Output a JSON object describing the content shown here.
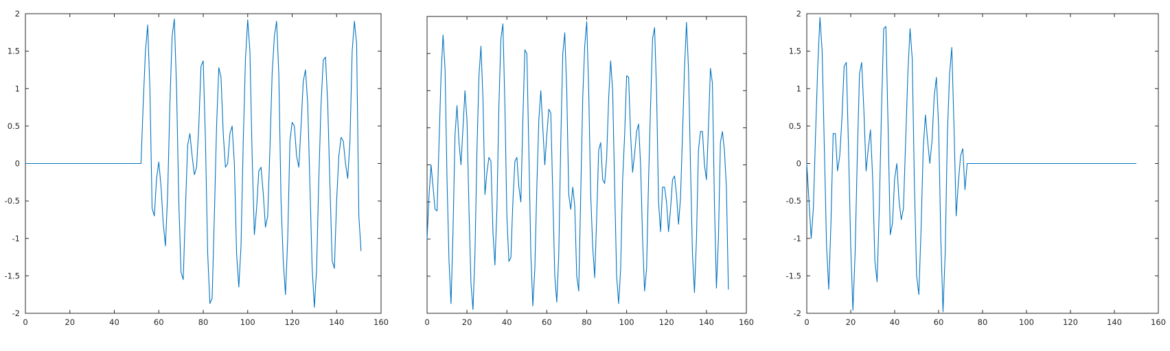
{
  "chart_data": [
    {
      "type": "line",
      "xlim": [
        0,
        160
      ],
      "ylim": [
        -2,
        2
      ],
      "xticks": [
        0,
        20,
        40,
        60,
        80,
        100,
        120,
        140,
        160
      ],
      "yticks": [
        -2,
        -1.5,
        -1,
        -0.5,
        0,
        0.5,
        1,
        1.5,
        2
      ],
      "xtick_labels": [
        "0",
        "20",
        "40",
        "60",
        "80",
        "100",
        "120",
        "140",
        "160"
      ],
      "ytick_labels": [
        "-2",
        "-1.5",
        "-1",
        "-0.5",
        "0",
        "0.5",
        "1",
        "1.5",
        "2"
      ],
      "grid": false,
      "series": [
        {
          "color": "#0072bd",
          "x": [
            0,
            52,
            53,
            54,
            55,
            56,
            57,
            58,
            59,
            60,
            61,
            62,
            63,
            64,
            65,
            66,
            67,
            68,
            69,
            70,
            71,
            72,
            73,
            74,
            75,
            76,
            77,
            78,
            79,
            80,
            81,
            82,
            83,
            84,
            85,
            86,
            87,
            88,
            89,
            90,
            91,
            92,
            93,
            94,
            95,
            96,
            97,
            98,
            99,
            100,
            101,
            102,
            103,
            104,
            105,
            106,
            107,
            108,
            109,
            110,
            111,
            112,
            113,
            114,
            115,
            116,
            117,
            118,
            119,
            120,
            121,
            122,
            123,
            124,
            125,
            126,
            127,
            128,
            129,
            130,
            131,
            132,
            133,
            134,
            135,
            136,
            137,
            138,
            139,
            140,
            141,
            142,
            143,
            144,
            145,
            146,
            147,
            148,
            149,
            150,
            151
          ],
          "y": [
            0,
            0,
            0.8,
            1.5,
            1.85,
            1.0,
            -0.6,
            -0.7,
            -0.2,
            0.02,
            -0.3,
            -0.8,
            -1.1,
            -0.4,
            0.8,
            1.7,
            1.93,
            1.0,
            -0.5,
            -1.45,
            -1.55,
            -0.6,
            0.25,
            0.4,
            0.1,
            -0.15,
            -0.05,
            0.5,
            1.3,
            1.37,
            0.3,
            -1.2,
            -1.87,
            -1.8,
            -0.7,
            0.5,
            1.28,
            1.15,
            0.4,
            -0.05,
            0.0,
            0.4,
            0.5,
            0.0,
            -1.2,
            -1.65,
            -1.1,
            0.3,
            1.4,
            1.92,
            1.5,
            0.1,
            -0.95,
            -0.6,
            -0.1,
            -0.05,
            -0.4,
            -0.85,
            -0.7,
            0.2,
            1.2,
            1.7,
            1.9,
            1.2,
            -0.5,
            -1.3,
            -1.75,
            -1.0,
            0.3,
            0.55,
            0.5,
            0.1,
            -0.05,
            0.5,
            1.1,
            1.25,
            0.8,
            -0.3,
            -1.4,
            -1.92,
            -1.4,
            -0.2,
            0.8,
            1.38,
            1.42,
            0.8,
            -0.3,
            -1.3,
            -1.4,
            -0.5,
            0.1,
            0.35,
            0.3,
            0.0,
            -0.2,
            0.3,
            1.5,
            1.9,
            1.6,
            -0.7,
            -1.17
          ]
        }
      ]
    },
    {
      "type": "line",
      "xlim": [
        0,
        160
      ],
      "ylim": [
        -2,
        2
      ],
      "xticks": [
        0,
        20,
        40,
        60,
        80,
        100,
        120,
        140,
        160
      ],
      "yticks": [
        -2,
        -1.5,
        -1,
        -0.5,
        0,
        0.5,
        1,
        1.5,
        2
      ],
      "xtick_labels": [
        "0",
        "20",
        "40",
        "60",
        "80",
        "100",
        "120",
        "140",
        "160"
      ],
      "ytick_labels": [],
      "grid": false,
      "series": [
        {
          "color": "#0072bd",
          "x": [
            0,
            1,
            2,
            3,
            4,
            5,
            6,
            7,
            8,
            9,
            10,
            11,
            12,
            13,
            14,
            15,
            16,
            17,
            18,
            19,
            20,
            21,
            22,
            23,
            24,
            25,
            26,
            27,
            28,
            29,
            30,
            31,
            32,
            33,
            34,
            35,
            36,
            37,
            38,
            39,
            40,
            41,
            42,
            43,
            44,
            45,
            46,
            47,
            48,
            49,
            50,
            51,
            52,
            53,
            54,
            55,
            56,
            57,
            58,
            59,
            60,
            61,
            62,
            63,
            64,
            65,
            66,
            67,
            68,
            69,
            70,
            71,
            72,
            73,
            74,
            75,
            76,
            77,
            78,
            79,
            80,
            81,
            82,
            83,
            84,
            85,
            86,
            87,
            88,
            89,
            90,
            91,
            92,
            93,
            94,
            95,
            96,
            97,
            98,
            99,
            100,
            101,
            102,
            103,
            104,
            105,
            106,
            107,
            108,
            109,
            110,
            111,
            112,
            113,
            114,
            115,
            116,
            117,
            118,
            119,
            120,
            121,
            122,
            123,
            124,
            125,
            126,
            127,
            128,
            129,
            130,
            131,
            132,
            133,
            134,
            135,
            136,
            137,
            138,
            139,
            140,
            141,
            142,
            143,
            144,
            145,
            146,
            147,
            148,
            149,
            150,
            151
          ],
          "y": [
            -1.0,
            -0.4,
            0.0,
            -0.3,
            -0.6,
            -0.62,
            0.3,
            1.2,
            1.75,
            1.3,
            -0.2,
            -1.3,
            -1.87,
            -0.9,
            0.4,
            0.8,
            0.3,
            0.0,
            0.5,
            1.0,
            0.6,
            -0.6,
            -1.6,
            -1.95,
            -1.2,
            0.2,
            1.2,
            1.6,
            0.9,
            -0.4,
            -0.1,
            0.1,
            0.05,
            -0.9,
            -1.35,
            -0.6,
            0.8,
            1.7,
            1.9,
            0.8,
            -0.7,
            -1.3,
            -1.25,
            -0.5,
            0.05,
            0.1,
            -0.3,
            -0.5,
            0.6,
            1.55,
            1.5,
            0.2,
            -1.2,
            -1.9,
            -1.4,
            -0.3,
            0.6,
            1.0,
            0.5,
            0.0,
            0.4,
            0.75,
            0.7,
            -0.4,
            -1.5,
            -1.85,
            -1.2,
            0.3,
            1.5,
            1.78,
            1.0,
            -0.4,
            -0.6,
            -0.3,
            -0.55,
            -1.5,
            -1.7,
            -0.4,
            0.9,
            1.6,
            1.93,
            1.0,
            -0.4,
            -1.1,
            -1.52,
            -0.7,
            0.2,
            0.3,
            -0.2,
            -0.25,
            0.1,
            0.9,
            1.4,
            1.0,
            -0.3,
            -1.5,
            -1.87,
            -1.4,
            -0.2,
            0.4,
            1.2,
            1.18,
            0.4,
            -0.1,
            0.15,
            0.45,
            0.55,
            0.0,
            -1.0,
            -1.7,
            -1.4,
            -0.2,
            0.8,
            1.7,
            1.85,
            1.0,
            -0.5,
            -0.9,
            -0.3,
            -0.3,
            -0.5,
            -0.9,
            -0.6,
            -0.2,
            -0.15,
            -0.4,
            -0.8,
            -0.45,
            0.4,
            1.3,
            1.92,
            1.3,
            0.0,
            -1.2,
            -1.72,
            -1.0,
            0.2,
            0.45,
            0.45,
            0.0,
            -0.2,
            0.5,
            1.3,
            1.1,
            -0.5,
            -1.66,
            -1.0,
            0.3,
            0.45,
            0.2,
            -0.3,
            -1.68
          ]
        }
      ]
    },
    {
      "type": "line",
      "xlim": [
        0,
        160
      ],
      "ylim": [
        -2,
        2
      ],
      "xticks": [
        0,
        20,
        40,
        60,
        80,
        100,
        120,
        140,
        160
      ],
      "yticks": [
        -2,
        -1.5,
        -1,
        -0.5,
        0,
        0.5,
        1,
        1.5,
        2
      ],
      "xtick_labels": [
        "0",
        "20",
        "40",
        "60",
        "80",
        "100",
        "120",
        "140",
        "160"
      ],
      "ytick_labels": [
        "-2",
        "-1.5",
        "-1",
        "-0.5",
        "0",
        "0.5",
        "1",
        "1.5",
        "2"
      ],
      "grid": false,
      "series": [
        {
          "color": "#0072bd",
          "x": [
            0,
            1,
            2,
            3,
            4,
            5,
            6,
            7,
            8,
            9,
            10,
            11,
            12,
            13,
            14,
            15,
            16,
            17,
            18,
            19,
            20,
            21,
            22,
            23,
            24,
            25,
            26,
            27,
            28,
            29,
            30,
            31,
            32,
            33,
            34,
            35,
            36,
            37,
            38,
            39,
            40,
            41,
            42,
            43,
            44,
            45,
            46,
            47,
            48,
            49,
            50,
            51,
            52,
            53,
            54,
            55,
            56,
            57,
            58,
            59,
            60,
            61,
            62,
            63,
            64,
            65,
            66,
            67,
            68,
            69,
            70,
            71,
            72,
            73,
            74,
            75,
            76,
            77,
            78,
            79,
            80,
            81,
            82,
            83,
            150
          ],
          "y": [
            0.0,
            -0.5,
            -1.0,
            -0.6,
            0.4,
            1.3,
            1.95,
            1.5,
            0.2,
            -1.1,
            -1.68,
            -0.8,
            0.4,
            0.4,
            -0.1,
            0.1,
            0.6,
            1.3,
            1.35,
            0.2,
            -1.1,
            -1.96,
            -1.2,
            0.1,
            1.2,
            1.35,
            0.7,
            -0.1,
            0.2,
            0.45,
            -0.2,
            -1.3,
            -1.58,
            -0.6,
            0.7,
            1.8,
            1.83,
            0.5,
            -0.95,
            -0.8,
            -0.2,
            0.0,
            -0.5,
            -0.75,
            -0.6,
            0.3,
            1.2,
            1.8,
            1.4,
            -0.3,
            -1.5,
            -1.75,
            -0.9,
            0.2,
            0.65,
            0.3,
            0.0,
            0.3,
            0.9,
            1.15,
            0.5,
            -1.0,
            -1.98,
            -1.2,
            0.4,
            1.2,
            1.55,
            0.5,
            -0.7,
            -0.25,
            0.1,
            0.2,
            -0.35,
            0.0,
            0.0,
            0.0,
            0.0,
            0.0,
            0.0,
            0.0,
            0.0,
            0.0,
            0.0,
            0.0,
            0.0
          ]
        }
      ]
    }
  ]
}
